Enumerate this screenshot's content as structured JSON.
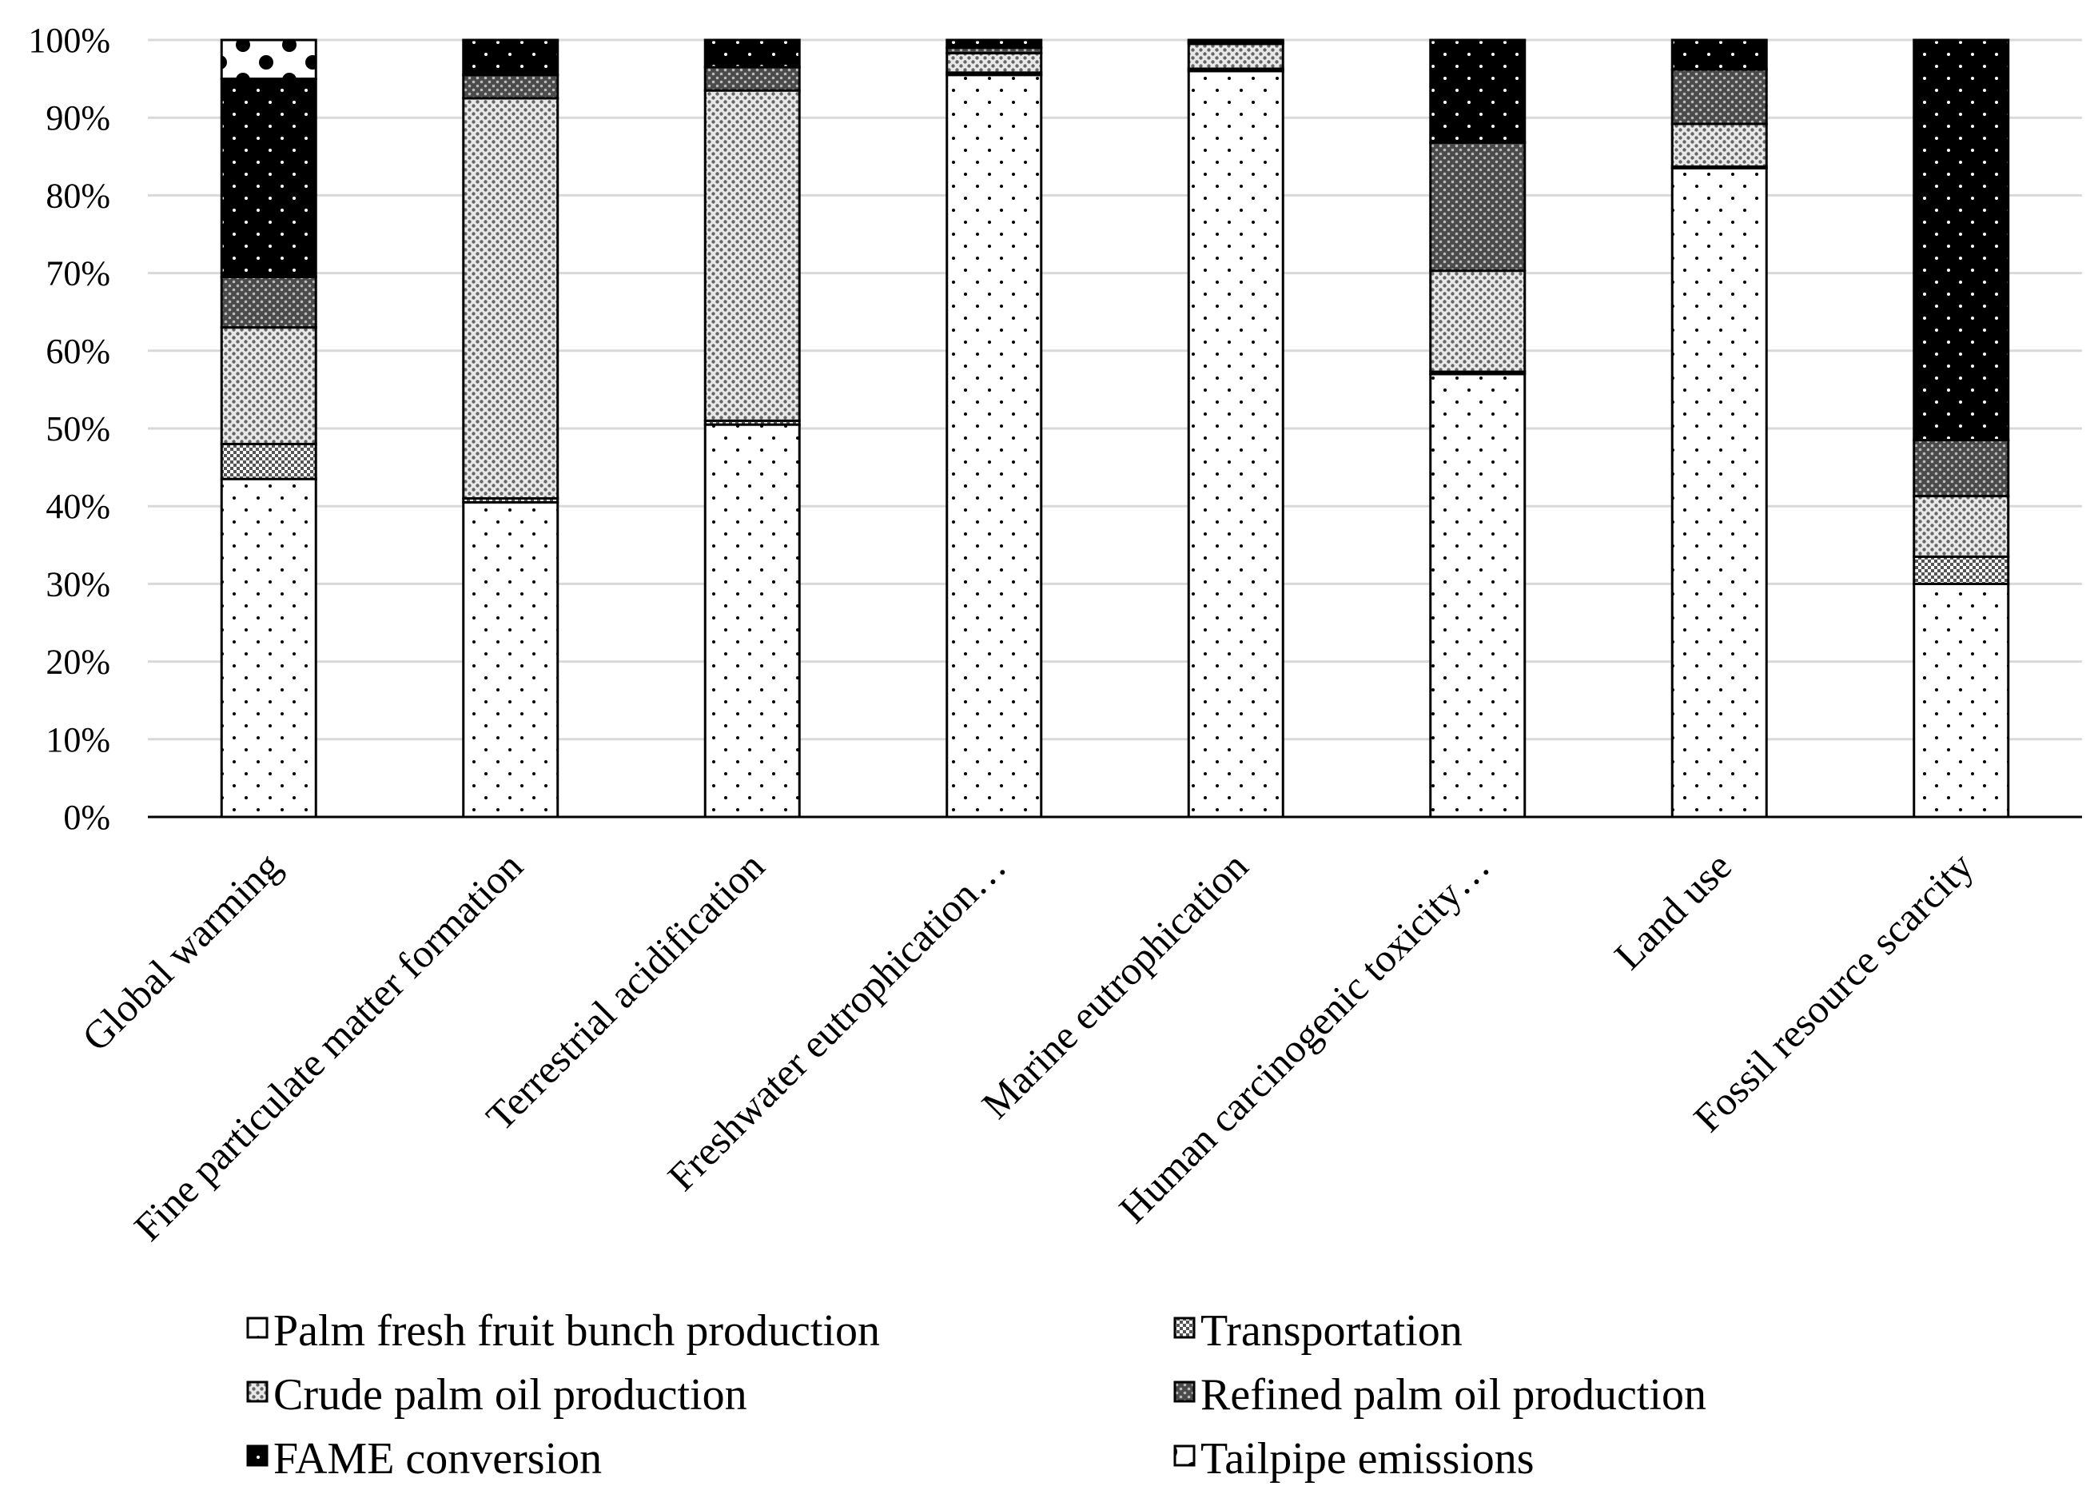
{
  "chart_data": {
    "type": "bar",
    "stacked": true,
    "normalized": true,
    "title": "",
    "xlabel": "",
    "ylabel": "",
    "ylim": [
      0,
      100
    ],
    "yticks": [
      "0%",
      "10%",
      "20%",
      "30%",
      "40%",
      "50%",
      "60%",
      "70%",
      "80%",
      "90%",
      "100%"
    ],
    "grid": true,
    "legend_position": "bottom",
    "categories": [
      "Global warming",
      "Fine particulate matter formation",
      "Terrestrial acidification",
      "Freshwater eutrophication…",
      "Marine eutrophication",
      "Human carcinogenic toxicity…",
      "Land use",
      "Fossil resource scarcity"
    ],
    "series": [
      {
        "name": "Palm fresh fruit bunch production",
        "pattern": "sparse-dots",
        "values": [
          43.5,
          40.5,
          50.5,
          95.5,
          96.0,
          57.0,
          83.5,
          30.0
        ]
      },
      {
        "name": "Transportation",
        "pattern": "dense-grid",
        "values": [
          4.5,
          0.5,
          0.5,
          0.3,
          0.3,
          0.3,
          0.2,
          3.5
        ]
      },
      {
        "name": "Crude palm oil production",
        "pattern": "medium-crosshatch",
        "values": [
          15.0,
          51.5,
          42.5,
          2.5,
          3.2,
          13.0,
          5.5,
          7.8
        ]
      },
      {
        "name": "Refined palm oil production",
        "pattern": "dark-crosshatch",
        "values": [
          6.5,
          3.0,
          3.0,
          0.7,
          0.3,
          16.5,
          7.0,
          7.2
        ]
      },
      {
        "name": "FAME conversion",
        "pattern": "black-dots",
        "values": [
          25.5,
          4.5,
          3.5,
          1.0,
          0.2,
          13.2,
          3.8,
          51.5
        ]
      },
      {
        "name": "Tailpipe emissions",
        "pattern": "white-stars",
        "values": [
          5.0,
          0,
          0,
          0,
          0,
          0,
          0,
          0
        ]
      }
    ]
  }
}
